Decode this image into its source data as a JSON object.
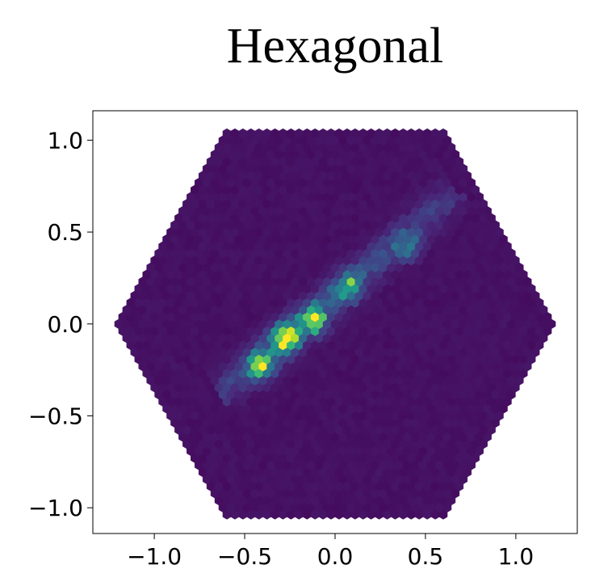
{
  "chart_data": {
    "type": "hexbin",
    "title": "Hexagonal",
    "xlabel": "",
    "ylabel": "",
    "xlim": [
      -1.34,
      1.34
    ],
    "ylim": [
      -1.14,
      1.16
    ],
    "x_ticks": [
      -1.0,
      -0.5,
      0.0,
      0.5,
      1.0
    ],
    "x_tick_labels": [
      "−1.0",
      "−0.5",
      "0.0",
      "0.5",
      "1.0"
    ],
    "y_ticks": [
      -1.0,
      -0.5,
      0.0,
      0.5,
      1.0
    ],
    "y_tick_labels": [
      "−1.0",
      "−0.5",
      "0.0",
      "0.5",
      "1.0"
    ],
    "colormap": "viridis",
    "colormap_stops": [
      "#440154",
      "#482878",
      "#3e4989",
      "#31688e",
      "#26828e",
      "#1f9e89",
      "#35b779",
      "#6ece58",
      "#b5de2b",
      "#fde725"
    ],
    "hull_vertices": [
      [
        -1.2,
        0.0
      ],
      [
        -0.6,
        1.04
      ],
      [
        0.6,
        1.04
      ],
      [
        1.2,
        0.0
      ],
      [
        0.6,
        -1.04
      ],
      [
        -0.6,
        -1.04
      ]
    ],
    "hex_size": 0.0256,
    "background_density": 0.045,
    "dense_band": {
      "from": [
        -0.58,
        -0.33
      ],
      "to": [
        0.62,
        0.68
      ],
      "width": 0.03,
      "peaks": [
        {
          "x": -0.27,
          "y": -0.08,
          "value": 1.0
        },
        {
          "x": -0.41,
          "y": -0.22,
          "value": 0.8
        },
        {
          "x": -0.12,
          "y": 0.02,
          "value": 0.75
        },
        {
          "x": 0.08,
          "y": 0.2,
          "value": 0.5
        },
        {
          "x": 0.4,
          "y": 0.42,
          "value": 0.3
        }
      ]
    },
    "grid": false,
    "legend": "none"
  }
}
